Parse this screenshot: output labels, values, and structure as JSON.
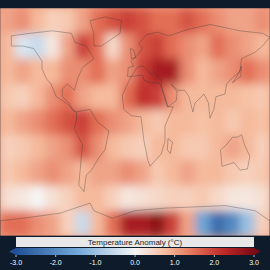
{
  "chart_data": {
    "type": "heatmap",
    "xlim": [
      -180,
      180
    ],
    "ylim": [
      -90,
      90
    ],
    "tick_labels": false,
    "cells": [
      [
        1.0,
        1.2,
        0.8,
        0.5,
        0.6,
        1.0,
        1.5,
        1.8,
        2.0,
        1.8,
        1.5,
        1.5,
        1.8,
        1.5,
        1.2,
        1.0,
        1.0,
        1.2
      ],
      [
        0.8,
        -0.3,
        -0.5,
        0.2,
        1.0,
        2.0,
        1.5,
        0.4,
        1.2,
        1.8,
        2.0,
        1.5,
        1.2,
        1.0,
        1.5,
        1.2,
        1.0,
        0.8
      ],
      [
        0.8,
        1.0,
        0.8,
        0.8,
        1.2,
        1.2,
        1.5,
        1.0,
        1.2,
        2.0,
        2.5,
        2.5,
        1.2,
        0.8,
        1.0,
        1.2,
        1.5,
        1.2
      ],
      [
        0.6,
        0.5,
        0.8,
        1.2,
        1.5,
        1.0,
        0.8,
        0.8,
        1.5,
        2.2,
        2.0,
        1.2,
        0.8,
        0.8,
        0.8,
        0.8,
        0.7,
        0.6
      ],
      [
        0.8,
        1.0,
        1.2,
        1.5,
        1.8,
        2.0,
        1.5,
        1.2,
        1.0,
        0.8,
        0.6,
        0.8,
        0.8,
        0.7,
        0.8,
        0.6,
        0.8,
        0.7
      ],
      [
        0.5,
        0.6,
        0.8,
        1.0,
        1.2,
        1.8,
        1.2,
        0.8,
        0.6,
        0.5,
        0.8,
        0.8,
        0.6,
        0.6,
        0.8,
        1.0,
        0.8,
        0.5
      ],
      [
        0.6,
        0.8,
        1.0,
        1.2,
        1.0,
        0.8,
        1.0,
        1.0,
        1.2,
        1.0,
        0.6,
        0.8,
        1.0,
        0.8,
        0.8,
        0.6,
        0.5,
        0.6
      ],
      [
        0.3,
        0.2,
        0.0,
        0.3,
        0.5,
        0.8,
        0.8,
        0.5,
        0.2,
        0.3,
        0.4,
        0.5,
        0.5,
        0.6,
        0.4,
        0.2,
        0.2,
        0.3
      ],
      [
        1.5,
        1.5,
        1.2,
        1.0,
        0.5,
        -0.5,
        0.8,
        1.5,
        2.5,
        2.5,
        2.8,
        2.0,
        1.0,
        -1.5,
        -2.5,
        -2.0,
        -1.0,
        0.5
      ]
    ],
    "colorbar": {
      "label": "Temperature Anomaly (°C)",
      "range": [
        -3,
        3
      ],
      "ticks": [
        {
          "value": -3,
          "label": "-3.0"
        },
        {
          "value": -2,
          "label": "-2.0"
        },
        {
          "value": -1,
          "label": "-1.0"
        },
        {
          "value": 0,
          "label": "0.0"
        },
        {
          "value": 1,
          "label": "1.0"
        },
        {
          "value": 2,
          "label": "2.0"
        },
        {
          "value": 3,
          "label": "3.0"
        }
      ]
    }
  }
}
